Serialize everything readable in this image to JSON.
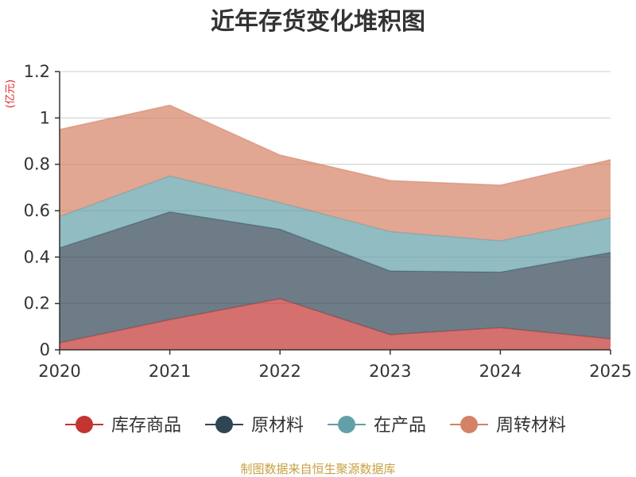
{
  "chart_data": {
    "type": "area",
    "stacked": true,
    "title": "近年存货变化堆积图",
    "unit_label": "(亿元)",
    "x": [
      "2020",
      "2021",
      "2022",
      "2023",
      "2024",
      "2025"
    ],
    "ylim": [
      0,
      1.2
    ],
    "yticks": [
      0,
      0.2,
      0.4,
      0.6,
      0.8,
      1,
      1.2
    ],
    "grid": true,
    "legend_position": "bottom",
    "series": [
      {
        "name": "库存商品",
        "color": "#c23531",
        "values": [
          0.03,
          0.13,
          0.22,
          0.065,
          0.095,
          0.047
        ]
      },
      {
        "name": "原材料",
        "color": "#2f4554",
        "values": [
          0.41,
          0.465,
          0.3,
          0.275,
          0.24,
          0.373
        ]
      },
      {
        "name": "在产品",
        "color": "#61a0a8",
        "values": [
          0.135,
          0.155,
          0.115,
          0.17,
          0.135,
          0.15
        ]
      },
      {
        "name": "周转材料",
        "color": "#d48265",
        "values": [
          0.375,
          0.305,
          0.205,
          0.22,
          0.24,
          0.25
        ]
      }
    ]
  },
  "source_text": "制图数据来自恒生聚源数据库"
}
